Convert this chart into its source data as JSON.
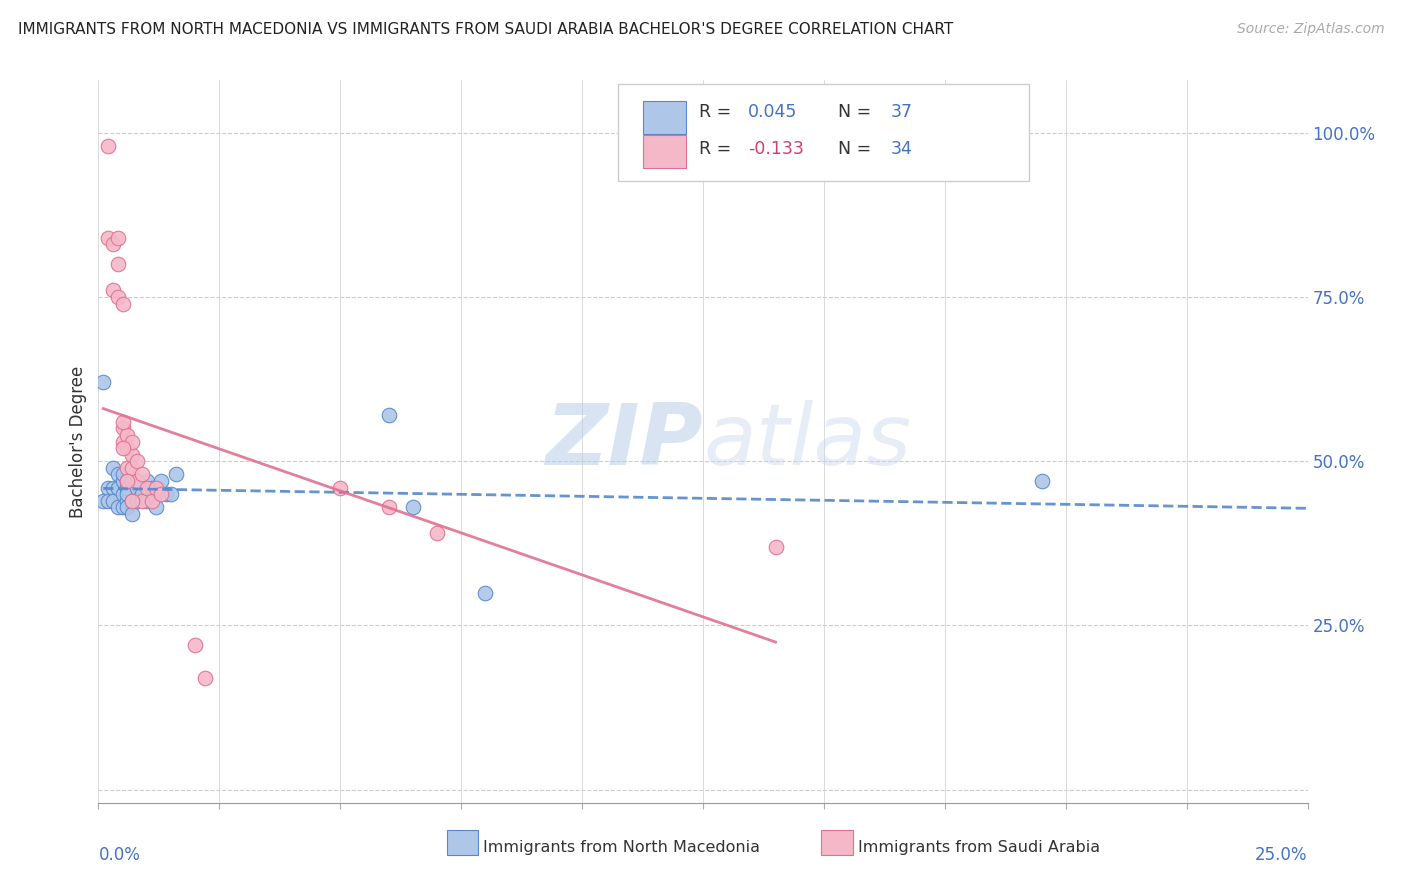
{
  "title": "IMMIGRANTS FROM NORTH MACEDONIA VS IMMIGRANTS FROM SAUDI ARABIA BACHELOR'S DEGREE CORRELATION CHART",
  "source": "Source: ZipAtlas.com",
  "ylabel": "Bachelor's Degree",
  "xlim": [
    0.0,
    0.25
  ],
  "ylim": [
    -0.02,
    1.08
  ],
  "ytick_vals": [
    0.0,
    0.25,
    0.5,
    0.75,
    1.0
  ],
  "ytick_labels": [
    "",
    "25.0%",
    "50.0%",
    "75.0%",
    "100.0%"
  ],
  "color_blue_fill": "#aec6e8",
  "color_pink_fill": "#f5b8c8",
  "color_blue_edge": "#5588cc",
  "color_pink_edge": "#e07090",
  "color_blue_text": "#4472c4",
  "color_pink_text": "#d04070",
  "watermark_color": "#ccddf0",
  "grid_color": "#cccccc",
  "north_macedonia_x": [
    0.001,
    0.001,
    0.002,
    0.002,
    0.003,
    0.003,
    0.003,
    0.004,
    0.004,
    0.004,
    0.005,
    0.005,
    0.005,
    0.005,
    0.006,
    0.006,
    0.006,
    0.006,
    0.006,
    0.007,
    0.007,
    0.007,
    0.008,
    0.008,
    0.009,
    0.01,
    0.01,
    0.011,
    0.012,
    0.013,
    0.014,
    0.015,
    0.016,
    0.06,
    0.065,
    0.08,
    0.195
  ],
  "north_macedonia_y": [
    0.62,
    0.44,
    0.46,
    0.44,
    0.49,
    0.46,
    0.44,
    0.48,
    0.46,
    0.43,
    0.47,
    0.45,
    0.43,
    0.48,
    0.44,
    0.47,
    0.46,
    0.45,
    0.43,
    0.47,
    0.44,
    0.42,
    0.46,
    0.44,
    0.45,
    0.47,
    0.44,
    0.46,
    0.43,
    0.47,
    0.45,
    0.45,
    0.48,
    0.57,
    0.43,
    0.3,
    0.47
  ],
  "saudi_arabia_x": [
    0.002,
    0.002,
    0.003,
    0.003,
    0.004,
    0.004,
    0.004,
    0.005,
    0.005,
    0.005,
    0.006,
    0.006,
    0.006,
    0.007,
    0.007,
    0.007,
    0.008,
    0.008,
    0.009,
    0.009,
    0.01,
    0.011,
    0.012,
    0.013,
    0.05,
    0.06,
    0.07,
    0.005,
    0.005,
    0.006,
    0.007,
    0.14,
    0.02,
    0.022
  ],
  "saudi_arabia_y": [
    0.98,
    0.84,
    0.83,
    0.76,
    0.84,
    0.8,
    0.75,
    0.74,
    0.55,
    0.53,
    0.54,
    0.52,
    0.49,
    0.51,
    0.53,
    0.49,
    0.5,
    0.47,
    0.48,
    0.44,
    0.46,
    0.44,
    0.46,
    0.45,
    0.46,
    0.43,
    0.39,
    0.56,
    0.52,
    0.47,
    0.44,
    0.37,
    0.22,
    0.17
  ],
  "legend_r1_black": "R = ",
  "legend_v1": "0.045",
  "legend_n1_black": "  N = ",
  "legend_n1_val": "37",
  "legend_r2_black": "R = ",
  "legend_v2": "-0.133",
  "legend_n2_black": "  N = ",
  "legend_n2_val": "34"
}
